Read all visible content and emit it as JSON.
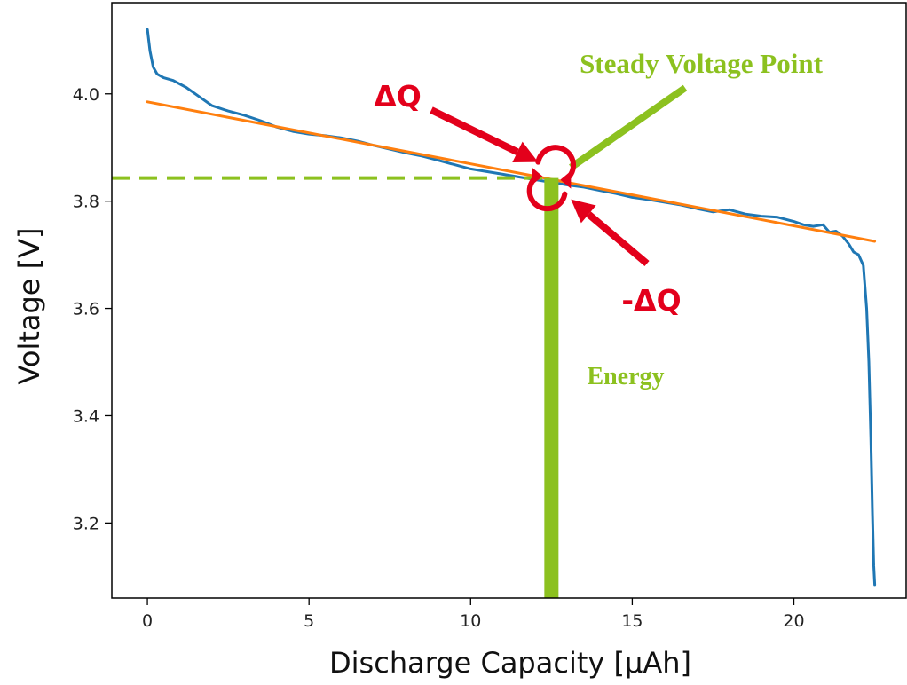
{
  "chart_data": {
    "type": "line",
    "title": "",
    "xlabel": "Discharge Capacity [μAh]",
    "ylabel": "Voltage [V]",
    "xlim": [
      -1.1,
      23.5
    ],
    "ylim": [
      3.06,
      4.17
    ],
    "xticks": [
      0,
      5,
      10,
      15,
      20
    ],
    "yticks": [
      3.2,
      3.4,
      3.6,
      3.8,
      4.0
    ],
    "xtick_labels": [
      "0",
      "5",
      "10",
      "15",
      "20"
    ],
    "ytick_labels": [
      "3.2",
      "3.4",
      "3.6",
      "3.8",
      "4.0"
    ],
    "grid": false,
    "legend": "none",
    "series": [
      {
        "color": "#1f77b4",
        "x": [
          0,
          0.08,
          0.18,
          0.3,
          0.5,
          0.8,
          1.2,
          1.6,
          2.0,
          2.5,
          3.0,
          3.5,
          4.0,
          4.5,
          5.0,
          5.5,
          6.0,
          6.5,
          7.0,
          7.5,
          8.0,
          8.5,
          9.0,
          9.5,
          10.0,
          10.5,
          11.0,
          11.5,
          12.0,
          12.5,
          13.0,
          13.5,
          14.0,
          14.5,
          15.0,
          15.5,
          16.0,
          16.5,
          17.0,
          17.5,
          18.0,
          18.5,
          19.0,
          19.5,
          20.0,
          20.3,
          20.6,
          20.9,
          21.1,
          21.3,
          21.5,
          21.7,
          21.85,
          22.0,
          22.15,
          22.25,
          22.32,
          22.38,
          22.43,
          22.47,
          22.5
        ],
        "y": [
          4.12,
          4.08,
          4.05,
          4.037,
          4.03,
          4.025,
          4.012,
          3.995,
          3.978,
          3.968,
          3.96,
          3.95,
          3.938,
          3.93,
          3.925,
          3.922,
          3.918,
          3.912,
          3.904,
          3.897,
          3.89,
          3.884,
          3.876,
          3.868,
          3.86,
          3.855,
          3.85,
          3.845,
          3.84,
          3.835,
          3.83,
          3.826,
          3.82,
          3.814,
          3.807,
          3.803,
          3.798,
          3.793,
          3.786,
          3.78,
          3.784,
          3.776,
          3.772,
          3.77,
          3.762,
          3.756,
          3.753,
          3.756,
          3.742,
          3.744,
          3.735,
          3.72,
          3.705,
          3.7,
          3.68,
          3.6,
          3.5,
          3.36,
          3.22,
          3.12,
          3.085
        ]
      },
      {
        "color": "#ff7f0e",
        "x": [
          0,
          22.5
        ],
        "y": [
          3.985,
          3.725
        ]
      }
    ],
    "annotations": {
      "steady_voltage_point": {
        "label": "Steady Voltage Point",
        "capacity": 12.5,
        "voltage": 3.843,
        "color": "#8cc11f"
      },
      "energy_label": "Energy",
      "delta_q_label": "ΔQ",
      "neg_delta_q_label": "-ΔQ",
      "marker_color": "#e3001b"
    }
  }
}
